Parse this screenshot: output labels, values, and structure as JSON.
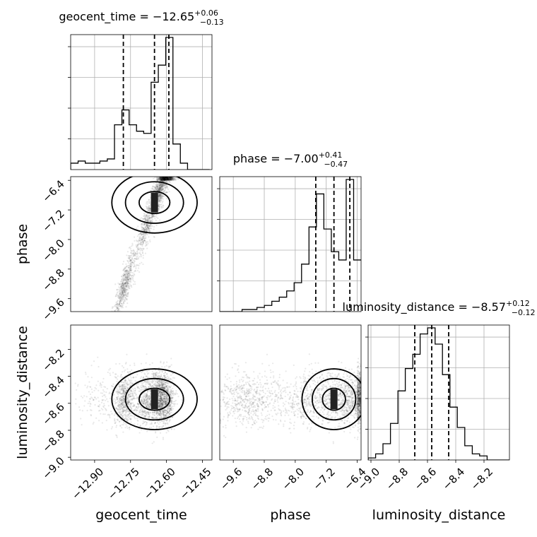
{
  "chart_data": {
    "type": "corner",
    "parameters": [
      "geocent_time",
      "phase",
      "luminosity_distance"
    ],
    "titles": [
      {
        "label": "geocent_time = −12.65",
        "plus": "+0.06",
        "minus": "−0.13"
      },
      {
        "label": "phase = −7.00",
        "plus": "+0.41",
        "minus": "−0.47"
      },
      {
        "label": "luminosity_distance = −8.57",
        "plus": "+0.12",
        "minus": "−0.12"
      }
    ],
    "axis_labels": [
      "geocent_time",
      "phase",
      "luminosity_distance"
    ],
    "axes": {
      "geocent_time": {
        "range": [
          -13.0,
          -12.41
        ],
        "ticks": [
          -12.9,
          -12.75,
          -12.6,
          -12.45
        ],
        "tick_labels": [
          "−12.90",
          "−12.75",
          "−12.60",
          "−12.45"
        ]
      },
      "phase": {
        "range": [
          -9.95,
          -6.3
        ],
        "ticks": [
          -9.6,
          -8.8,
          -8.0,
          -7.2,
          -6.4
        ],
        "tick_labels": [
          "−9.6",
          "−8.8",
          "−8.0",
          "−7.2",
          "−6.4"
        ]
      },
      "luminosity_distance": {
        "range": [
          -9.02,
          -8.02
        ],
        "ticks": [
          -9.0,
          -8.8,
          -8.6,
          -8.4,
          -8.2
        ],
        "tick_labels": [
          "−9.0",
          "−8.8",
          "−8.6",
          "−8.4",
          "−8.2"
        ]
      }
    },
    "quantiles": {
      "geocent_time": [
        -12.78,
        -12.65,
        -12.59
      ],
      "phase": [
        -7.47,
        -7.0,
        -6.59
      ],
      "luminosity_distance": [
        -8.69,
        -8.57,
        -8.45
      ]
    },
    "histograms": {
      "geocent_time": {
        "edges": [
          -13.0,
          -12.969,
          -12.939,
          -12.908,
          -12.878,
          -12.847,
          -12.817,
          -12.786,
          -12.756,
          -12.725,
          -12.695,
          -12.664,
          -12.634,
          -12.603,
          -12.573,
          -12.542,
          -12.512,
          -12.481,
          -12.451,
          -12.42
        ],
        "counts": [
          3,
          4,
          3,
          3,
          4,
          5,
          21,
          28,
          21,
          18,
          17,
          41,
          49,
          62,
          12,
          3,
          0,
          0,
          0
        ]
      },
      "phase": {
        "edges": [
          -9.95,
          -9.758,
          -9.566,
          -9.374,
          -9.182,
          -8.989,
          -8.797,
          -8.605,
          -8.413,
          -8.221,
          -8.029,
          -7.837,
          -7.645,
          -7.453,
          -7.261,
          -7.068,
          -6.876,
          -6.684,
          -6.492,
          -6.3
        ],
        "counts": [
          0,
          0,
          0,
          1,
          1,
          2,
          3,
          5,
          7,
          10,
          14,
          23,
          41,
          57,
          40,
          29,
          25,
          64,
          25
        ]
      },
      "luminosity_distance": {
        "edges": [
          -9.02,
          -8.967,
          -8.915,
          -8.862,
          -8.809,
          -8.757,
          -8.704,
          -8.652,
          -8.599,
          -8.546,
          -8.494,
          -8.441,
          -8.389,
          -8.336,
          -8.283,
          -8.231,
          -8.178,
          -8.125,
          -8.073,
          -8.02
        ],
        "counts": [
          1,
          3,
          8,
          18,
          34,
          45,
          52,
          62,
          65,
          57,
          42,
          26,
          16,
          7,
          3,
          2,
          0,
          0,
          0
        ]
      }
    },
    "histogram_grid": true,
    "scatter_points": true,
    "contours": true
  }
}
